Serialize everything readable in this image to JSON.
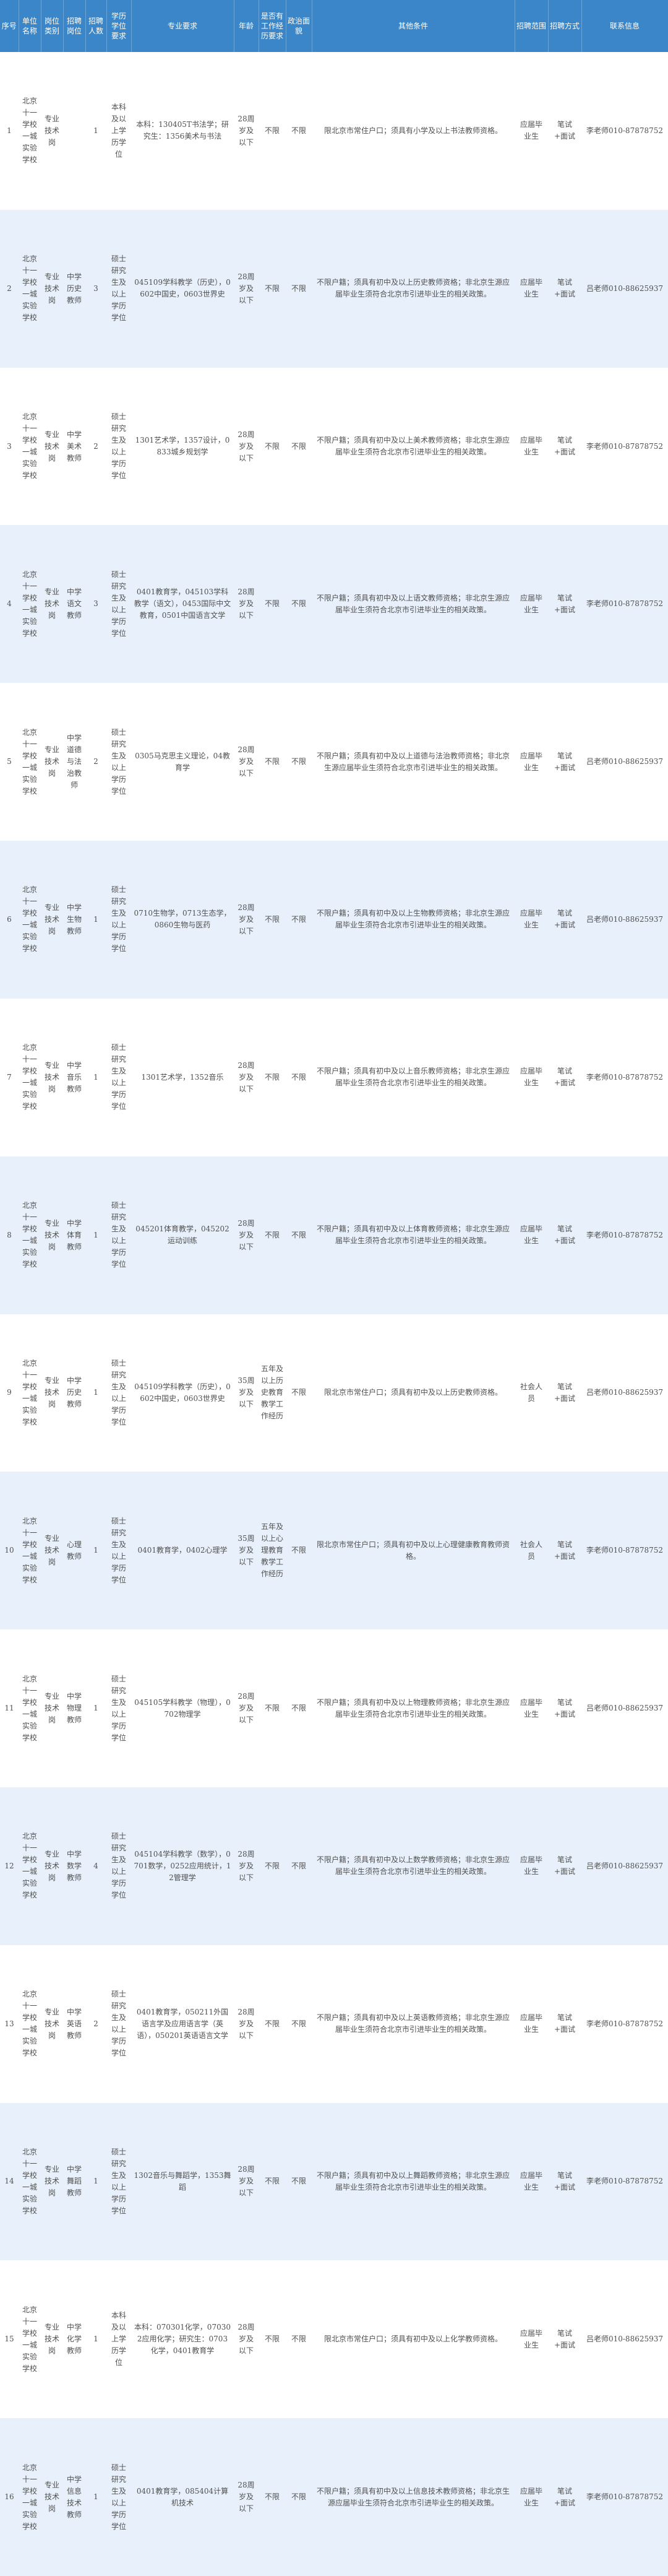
{
  "headers": {
    "no": "序号",
    "unit": "单位名称",
    "post_type": "岗位类别",
    "post_name": "招聘岗位",
    "count": "招聘人数",
    "degree": "学历学位要求",
    "major": "专业要求",
    "age": "年龄",
    "experience": "是否有工作经历要求",
    "politics": "政治面貌",
    "other": "其他条件",
    "scope": "招聘范围",
    "method": "招聘方式",
    "contact": "联系信息"
  },
  "rows": [
    {
      "no": "1",
      "unit": "北京十一学校一城实验学校",
      "post_type": "专业技术岗",
      "post_name": "",
      "count": "1",
      "degree": "本科及以上学历学位",
      "major": "本科：130405T书法学；研究生：1356美术与书法",
      "age": "28周岁及以下",
      "experience": "不限",
      "politics": "不限",
      "other": "限北京市常住户口；须具有小学及以上书法教师资格。",
      "scope": "应届毕业生",
      "method": "笔试+面试",
      "contact": "李老师010-87878752"
    },
    {
      "no": "2",
      "unit": "北京十一学校一城实验学校",
      "post_type": "专业技术岗",
      "post_name": "中学历史教师",
      "count": "3",
      "degree": "硕士研究生及以上学历学位",
      "major": "045109学科教学（历史），0602中国史，0603世界史",
      "age": "28周岁及以下",
      "experience": "不限",
      "politics": "不限",
      "other": "不限户籍；须具有初中及以上历史教师资格；非北京生源应届毕业生须符合北京市引进毕业生的相关政策。",
      "scope": "应届毕业生",
      "method": "笔试+面试",
      "contact": "吕老师010-88625937"
    },
    {
      "no": "3",
      "unit": "北京十一学校一城实验学校",
      "post_type": "专业技术岗",
      "post_name": "中学美术教师",
      "count": "2",
      "degree": "硕士研究生及以上学历学位",
      "major": "1301艺术学，1357设计，0833城乡规划学",
      "age": "28周岁及以下",
      "experience": "不限",
      "politics": "不限",
      "other": "不限户籍；须具有初中及以上美术教师资格；非北京生源应届毕业生须符合北京市引进毕业生的相关政策。",
      "scope": "应届毕业生",
      "method": "笔试+面试",
      "contact": "李老师010-87878752"
    },
    {
      "no": "4",
      "unit": "北京十一学校一城实验学校",
      "post_type": "专业技术岗",
      "post_name": "中学语文教师",
      "count": "3",
      "degree": "硕士研究生及以上学历学位",
      "major": "0401教育学，045103学科教学（语文），0453国际中文教育，0501中国语言文学",
      "age": "28周岁及以下",
      "experience": "不限",
      "politics": "不限",
      "other": "不限户籍；须具有初中及以上语文教师资格；非北京生源应届毕业生须符合北京市引进毕业生的相关政策。",
      "scope": "应届毕业生",
      "method": "笔试+面试",
      "contact": "李老师010-87878752"
    },
    {
      "no": "5",
      "unit": "北京十一学校一城实验学校",
      "post_type": "专业技术岗",
      "post_name": "中学道德与法治教师",
      "count": "2",
      "degree": "硕士研究生及以上学历学位",
      "major": "0305马克思主义理论，04教育学",
      "age": "28周岁及以下",
      "experience": "不限",
      "politics": "不限",
      "other": "不限户籍；须具有初中及以上道德与法治教师资格；非北京生源应届毕业生须符合北京市引进毕业生的相关政策。",
      "scope": "应届毕业生",
      "method": "笔试+面试",
      "contact": "吕老师010-88625937"
    },
    {
      "no": "6",
      "unit": "北京十一学校一城实验学校",
      "post_type": "专业技术岗",
      "post_name": "中学生物教师",
      "count": "1",
      "degree": "硕士研究生及以上学历学位",
      "major": "0710生物学，0713生态学，0860生物与医药",
      "age": "28周岁及以下",
      "experience": "不限",
      "politics": "不限",
      "other": "不限户籍；须具有初中及以上生物教师资格；非北京生源应届毕业生须符合北京市引进毕业生的相关政策。",
      "scope": "应届毕业生",
      "method": "笔试+面试",
      "contact": "吕老师010-88625937"
    },
    {
      "no": "7",
      "unit": "北京十一学校一城实验学校",
      "post_type": "专业技术岗",
      "post_name": "中学音乐教师",
      "count": "1",
      "degree": "硕士研究生及以上学历学位",
      "major": "1301艺术学，1352音乐",
      "age": "28周岁及以下",
      "experience": "不限",
      "politics": "不限",
      "other": "不限户籍；须具有初中及以上音乐教师资格；非北京生源应届毕业生须符合北京市引进毕业生的相关政策。",
      "scope": "应届毕业生",
      "method": "笔试+面试",
      "contact": "李老师010-87878752"
    },
    {
      "no": "8",
      "unit": "北京十一学校一城实验学校",
      "post_type": "专业技术岗",
      "post_name": "中学体育教师",
      "count": "1",
      "degree": "硕士研究生及以上学历学位",
      "major": "045201体育教学，045202运动训练",
      "age": "28周岁及以下",
      "experience": "不限",
      "politics": "不限",
      "other": "不限户籍；须具有初中及以上体育教师资格；非北京生源应届毕业生须符合北京市引进毕业生的相关政策。",
      "scope": "应届毕业生",
      "method": "笔试+面试",
      "contact": "李老师010-87878752"
    },
    {
      "no": "9",
      "unit": "北京十一学校一城实验学校",
      "post_type": "专业技术岗",
      "post_name": "中学历史教师",
      "count": "1",
      "degree": "硕士研究生及以上学历学位",
      "major": "045109学科教学（历史），0602中国史，0603世界史",
      "age": "35周岁及以下",
      "experience": "五年及以上历史教育教学工作经历",
      "politics": "不限",
      "other": "限北京市常住户口；须具有初中及以上历史教师资格。",
      "scope": "社会人员",
      "method": "笔试+面试",
      "contact": "吕老师010-88625937"
    },
    {
      "no": "10",
      "unit": "北京十一学校一城实验学校",
      "post_type": "专业技术岗",
      "post_name": "心理教师",
      "count": "1",
      "degree": "硕士研究生及以上学历学位",
      "major": "0401教育学，0402心理学",
      "age": "35周岁及以下",
      "experience": "五年及以上心理教育教学工作经历",
      "politics": "不限",
      "other": "限北京市常住户口；须具有初中及以上心理健康教育教师资格。",
      "scope": "社会人员",
      "method": "笔试+面试",
      "contact": "李老师010-87878752"
    },
    {
      "no": "11",
      "unit": "北京十一学校一城实验学校",
      "post_type": "专业技术岗",
      "post_name": "中学物理教师",
      "count": "1",
      "degree": "硕士研究生及以上学历学位",
      "major": "045105学科教学（物理），0702物理学",
      "age": "28周岁及以下",
      "experience": "不限",
      "politics": "不限",
      "other": "不限户籍；须具有初中及以上物理教师资格；非北京生源应届毕业生须符合北京市引进毕业生的相关政策。",
      "scope": "应届毕业生",
      "method": "笔试+面试",
      "contact": "吕老师010-88625937"
    },
    {
      "no": "12",
      "unit": "北京十一学校一城实验学校",
      "post_type": "专业技术岗",
      "post_name": "中学数学教师",
      "count": "4",
      "degree": "硕士研究生及以上学历学位",
      "major": "045104学科教学（数学），0701数学，0252应用统计，12管理学",
      "age": "28周岁及以下",
      "experience": "不限",
      "politics": "不限",
      "other": "不限户籍；须具有初中及以上数学教师资格；非北京生源应届毕业生须符合北京市引进毕业生的相关政策。",
      "scope": "应届毕业生",
      "method": "笔试+面试",
      "contact": "吕老师010-88625937"
    },
    {
      "no": "13",
      "unit": "北京十一学校一城实验学校",
      "post_type": "专业技术岗",
      "post_name": "中学英语教师",
      "count": "2",
      "degree": "硕士研究生及以上学历学位",
      "major": "0401教育学，050211外国语言学及应用语言学（英语），050201英语语言文学",
      "age": "28周岁及以下",
      "experience": "不限",
      "politics": "不限",
      "other": "不限户籍；须具有初中及以上英语教师资格；非北京生源应届毕业生须符合北京市引进毕业生的相关政策。",
      "scope": "应届毕业生",
      "method": "笔试+面试",
      "contact": "李老师010-87878752"
    },
    {
      "no": "14",
      "unit": "北京十一学校一城实验学校",
      "post_type": "专业技术岗",
      "post_name": "中学舞蹈教师",
      "count": "1",
      "degree": "硕士研究生及以上学历学位",
      "major": "1302音乐与舞蹈学，1353舞蹈",
      "age": "28周岁及以下",
      "experience": "不限",
      "politics": "不限",
      "other": "不限户籍；须具有初中及以上舞蹈教师资格；非北京生源应届毕业生须符合北京市引进毕业生的相关政策。",
      "scope": "应届毕业生",
      "method": "笔试+面试",
      "contact": "李老师010-87878752"
    },
    {
      "no": "15",
      "unit": "北京十一学校一城实验学校",
      "post_type": "专业技术岗",
      "post_name": "中学化学教师",
      "count": "1",
      "degree": "本科及以上学历学位",
      "major": "本科：070301化学，070302应用化学；研究生：0703化学，0401教育学",
      "age": "28周岁及以下",
      "experience": "不限",
      "politics": "不限",
      "other": "限北京市常住户口；须具有初中及以上化学教师资格。",
      "scope": "应届毕业生",
      "method": "笔试+面试",
      "contact": "吕老师010-88625937"
    },
    {
      "no": "16",
      "unit": "北京十一学校一城实验学校",
      "post_type": "专业技术岗",
      "post_name": "中学信息技术教师",
      "count": "1",
      "degree": "硕士研究生及以上学历学位",
      "major": "0401教育学，085404计算机技术",
      "age": "28周岁及以下",
      "experience": "不限",
      "politics": "不限",
      "other": "不限户籍；须具有初中及以上信息技术教师资格；非北京生源应届毕业生须符合北京市引进毕业生的相关政策。",
      "scope": "应届毕业生",
      "method": "笔试+面试",
      "contact": "李老师010-87878752"
    }
  ]
}
